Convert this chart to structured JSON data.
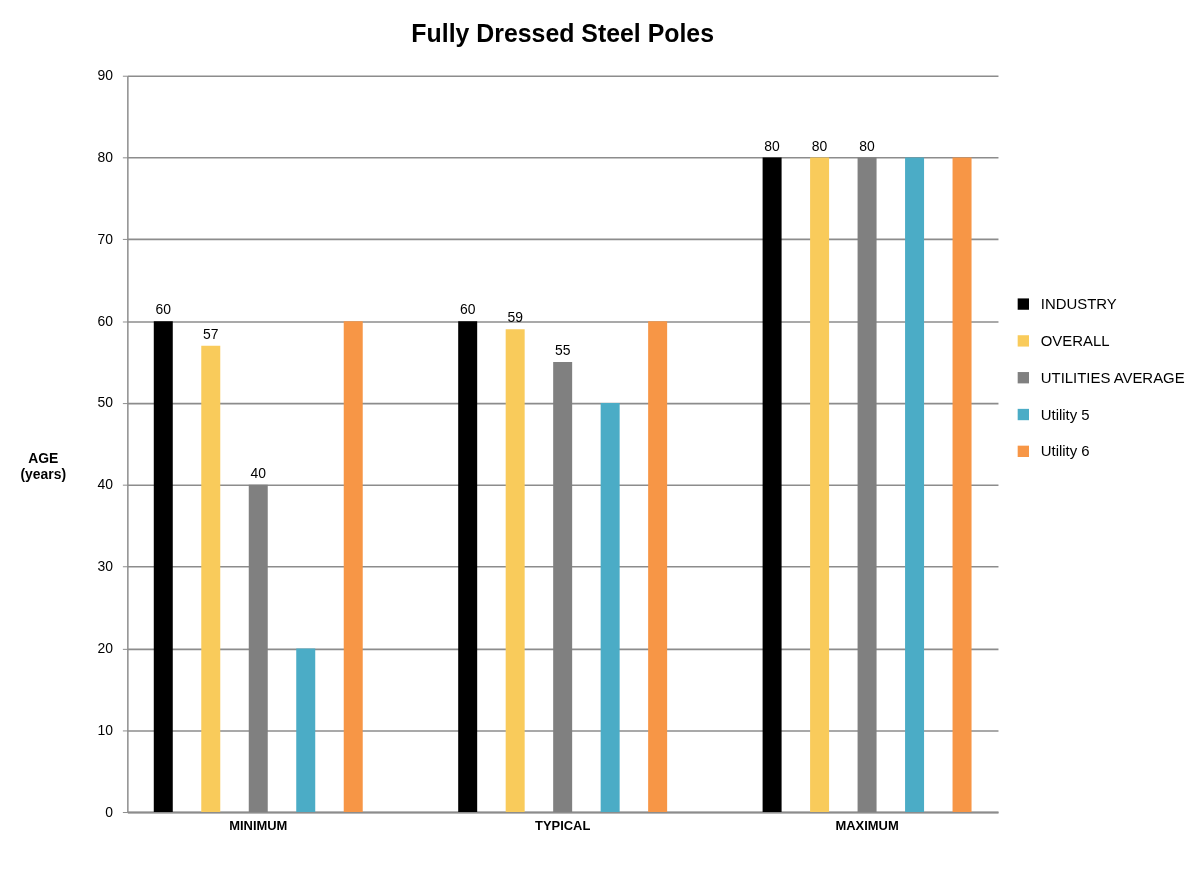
{
  "chart_data": {
    "type": "bar",
    "title": "Fully Dressed Steel Poles",
    "ylabel": "AGE (years)",
    "categories": [
      "MINIMUM",
      "TYPICAL",
      "MAXIMUM"
    ],
    "series": [
      {
        "name": "INDUSTRY",
        "color": "#000000",
        "values": [
          60,
          60,
          80
        ],
        "value_labels": [
          "60",
          "60",
          "80"
        ]
      },
      {
        "name": "OVERALL",
        "color": "#f9cb5b",
        "values": [
          57,
          59,
          80
        ],
        "value_labels": [
          "57",
          "59",
          "80"
        ]
      },
      {
        "name": "UTILITIES AVERAGE",
        "color": "#808080",
        "values": [
          40,
          55,
          80
        ],
        "value_labels": [
          "40",
          "55",
          "80"
        ]
      },
      {
        "name": "Utility 5",
        "color": "#4bacc6",
        "values": [
          20,
          50,
          80
        ]
      },
      {
        "name": "Utility 6",
        "color": "#f79646",
        "values": [
          60,
          60,
          80
        ]
      }
    ],
    "ylim": [
      0,
      90
    ],
    "yticks": [
      0,
      10,
      20,
      30,
      40,
      50,
      60,
      70,
      80,
      90
    ],
    "grid": "y",
    "legend": "right"
  }
}
